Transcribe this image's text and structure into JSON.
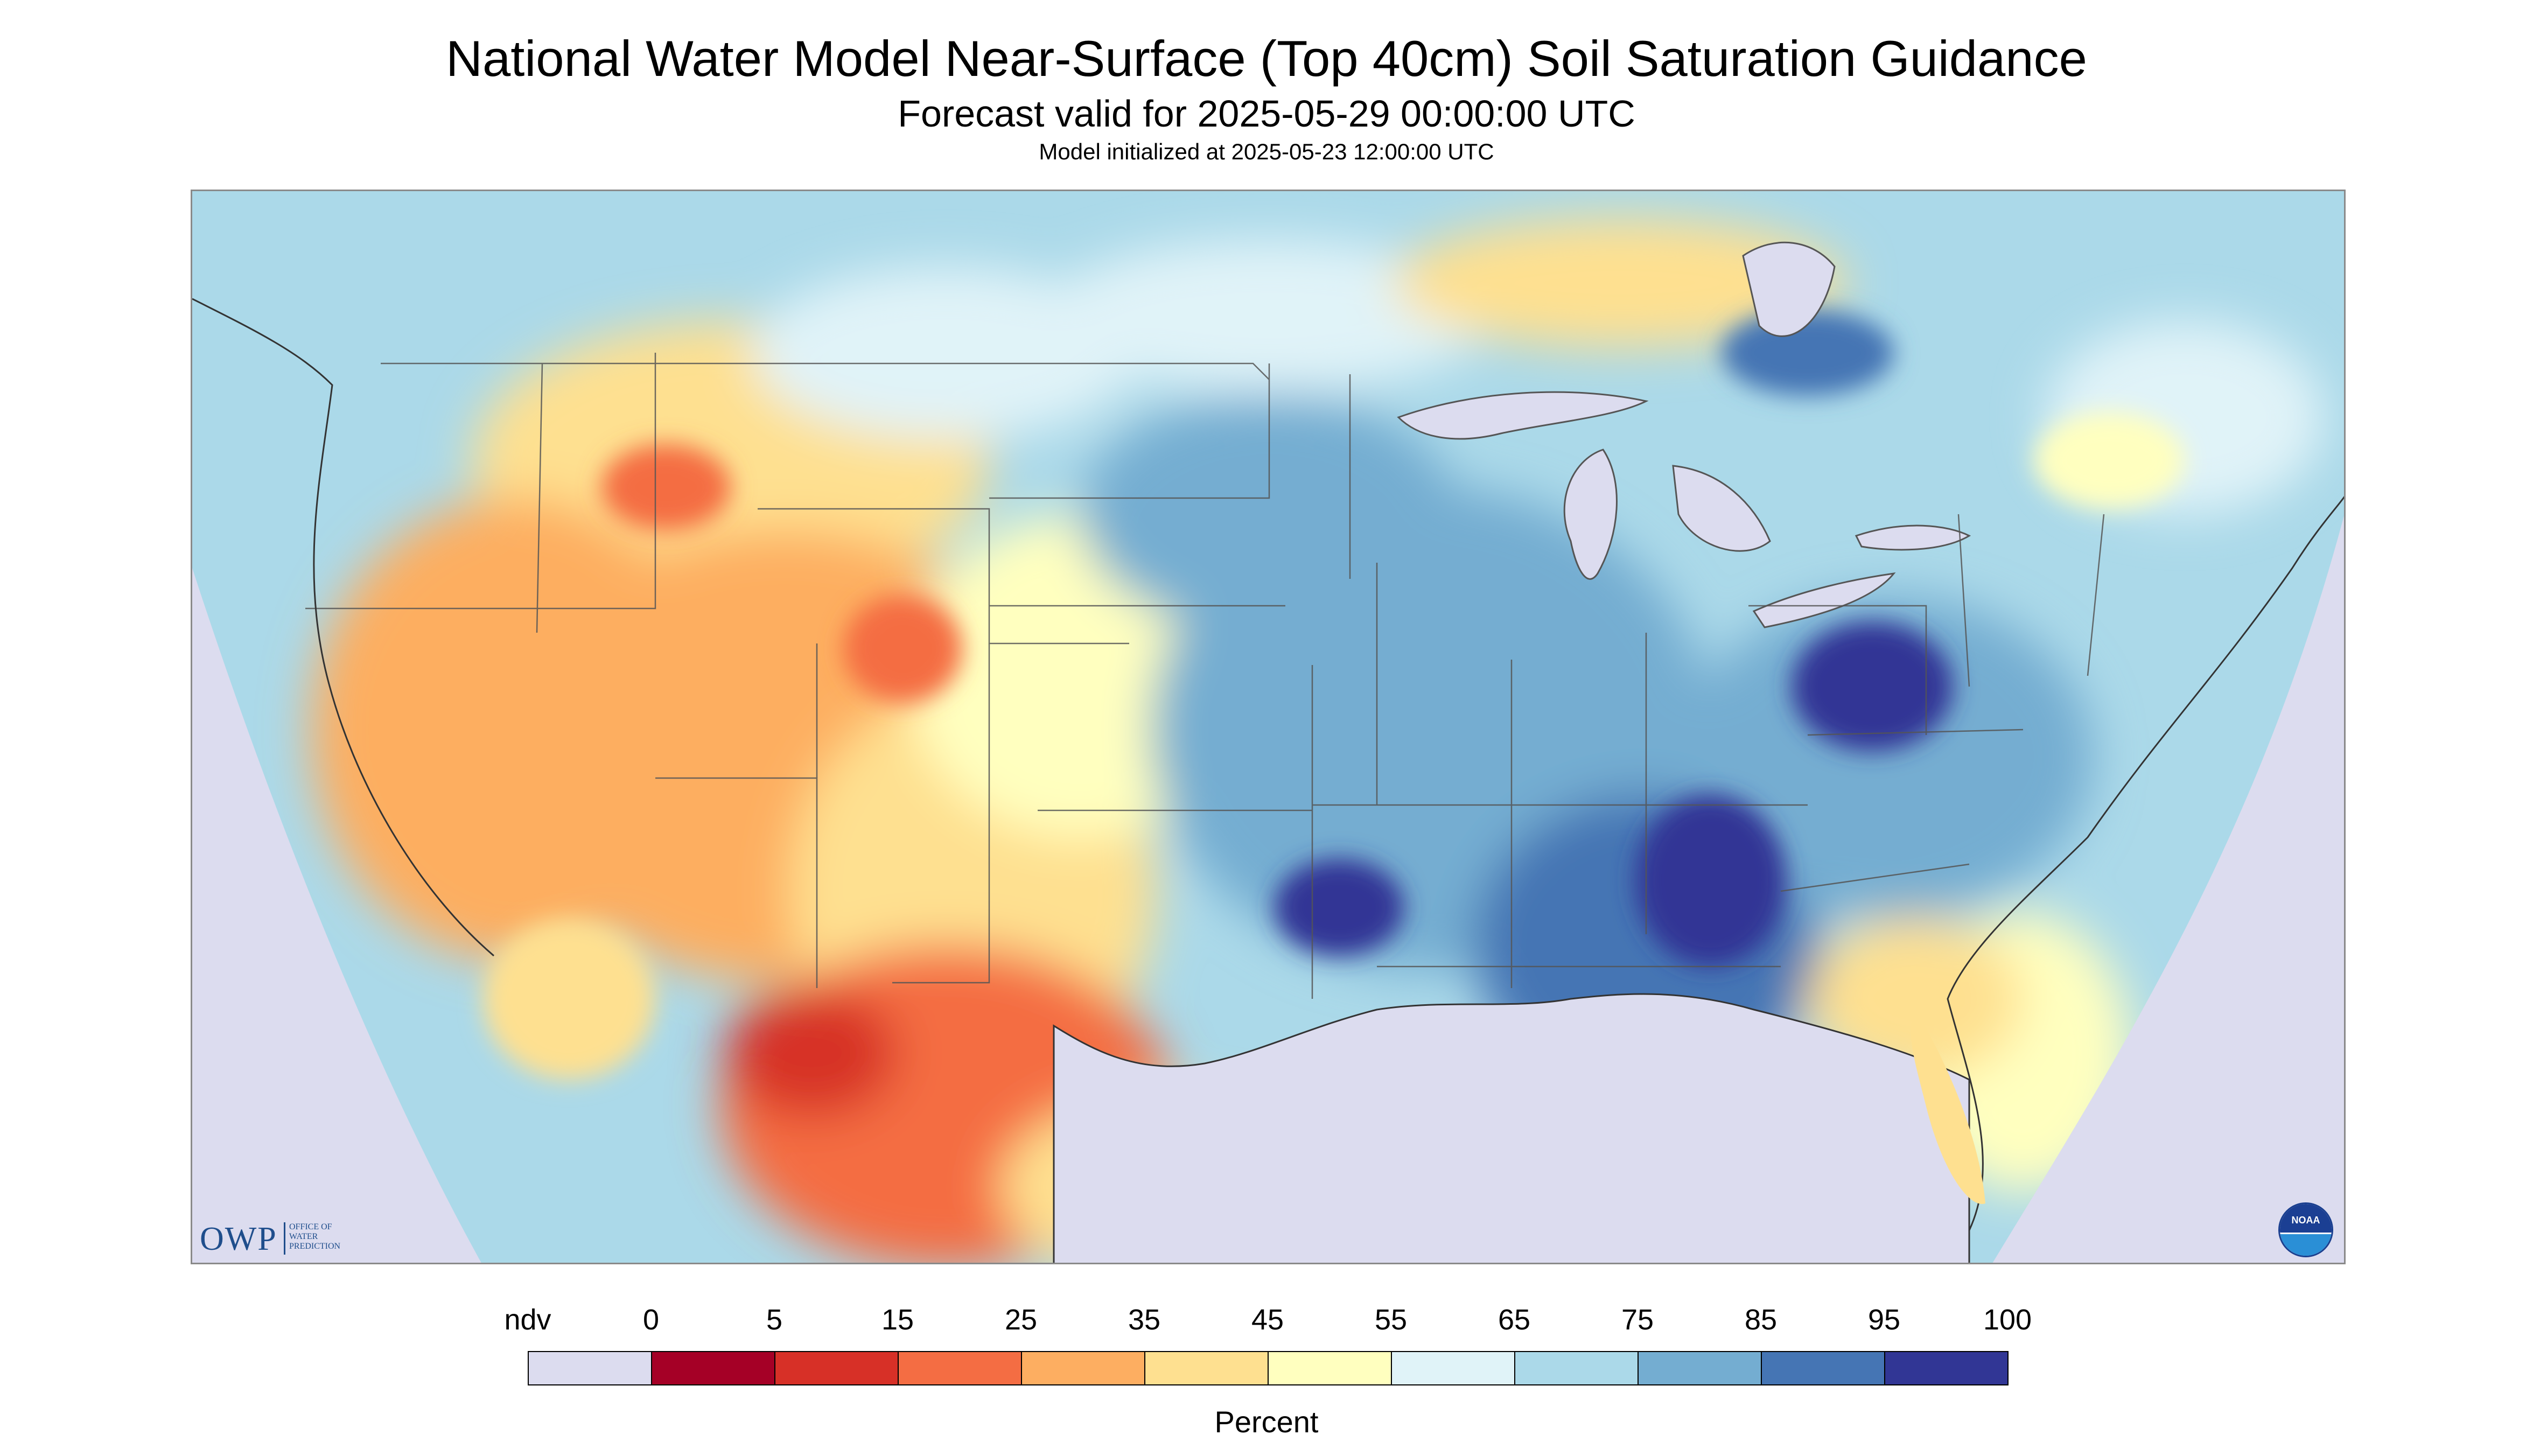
{
  "header": {
    "title": "National Water Model Near-Surface (Top 40cm) Soil Saturation Guidance",
    "subtitle": "Forecast valid for 2025-05-29 00:00:00 UTC",
    "init": "Model initialized at 2025-05-23 12:00:00 UTC"
  },
  "map": {
    "region": "Contiguous United States",
    "background_color": "#dcdcef",
    "features": [
      "soil-saturation-field",
      "state-borders",
      "great-lakes",
      "coastline"
    ]
  },
  "logos": {
    "owp_abbrev": "OWP",
    "owp_name": "OFFICE OF WATER PREDICTION",
    "noaa": "NOAA"
  },
  "colorbar": {
    "label": "Percent",
    "ticks": [
      "ndv",
      "0",
      "5",
      "15",
      "25",
      "35",
      "45",
      "55",
      "65",
      "75",
      "85",
      "95",
      "100"
    ],
    "bins": [
      {
        "range": "ndv",
        "color": "#dcdcef"
      },
      {
        "range": "0-5",
        "color": "#a50026"
      },
      {
        "range": "5-15",
        "color": "#d73027"
      },
      {
        "range": "15-25",
        "color": "#f46d43"
      },
      {
        "range": "25-35",
        "color": "#fdae61"
      },
      {
        "range": "35-45",
        "color": "#fee090"
      },
      {
        "range": "45-55",
        "color": "#ffffbf"
      },
      {
        "range": "55-65",
        "color": "#e0f3f8"
      },
      {
        "range": "65-75",
        "color": "#abd9e9"
      },
      {
        "range": "75-85",
        "color": "#74add1"
      },
      {
        "range": "85-95",
        "color": "#4575b4"
      },
      {
        "range": "95-100",
        "color": "#313695"
      }
    ]
  }
}
